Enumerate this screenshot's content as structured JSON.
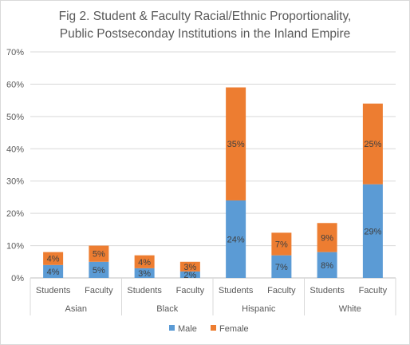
{
  "chart_data": {
    "type": "bar",
    "stacked": true,
    "title_line1": "Fig 2. Student  & Faculty Racial/Ethnic Proportionality,",
    "title_line2": "Public Postseconday Institutions in the Inland Empire",
    "groups": [
      "Asian",
      "Black",
      "Hispanic",
      "White"
    ],
    "subcategories": [
      "Students",
      "Faculty",
      "Students",
      "Faculty",
      "Students",
      "Faculty",
      "Students",
      "Faculty"
    ],
    "series": [
      {
        "name": "Male",
        "color": "#5B9BD5",
        "values": [
          4,
          5,
          3,
          2,
          24,
          7,
          8,
          29
        ],
        "labels": [
          "4%",
          "5%",
          "3%",
          "2%",
          "24%",
          "7%",
          "8%",
          "29%"
        ]
      },
      {
        "name": "Female",
        "color": "#ED7D31",
        "values": [
          4,
          5,
          4,
          3,
          35,
          7,
          9,
          25
        ],
        "labels": [
          "4%",
          "5%",
          "4%",
          "3%",
          "35%",
          "7%",
          "9%",
          "25%"
        ]
      }
    ],
    "y_ticks": [
      "0%",
      "10%",
      "20%",
      "30%",
      "40%",
      "50%",
      "60%",
      "70%"
    ],
    "ylim": [
      0,
      70
    ],
    "grid": true,
    "legend_position": "bottom"
  }
}
